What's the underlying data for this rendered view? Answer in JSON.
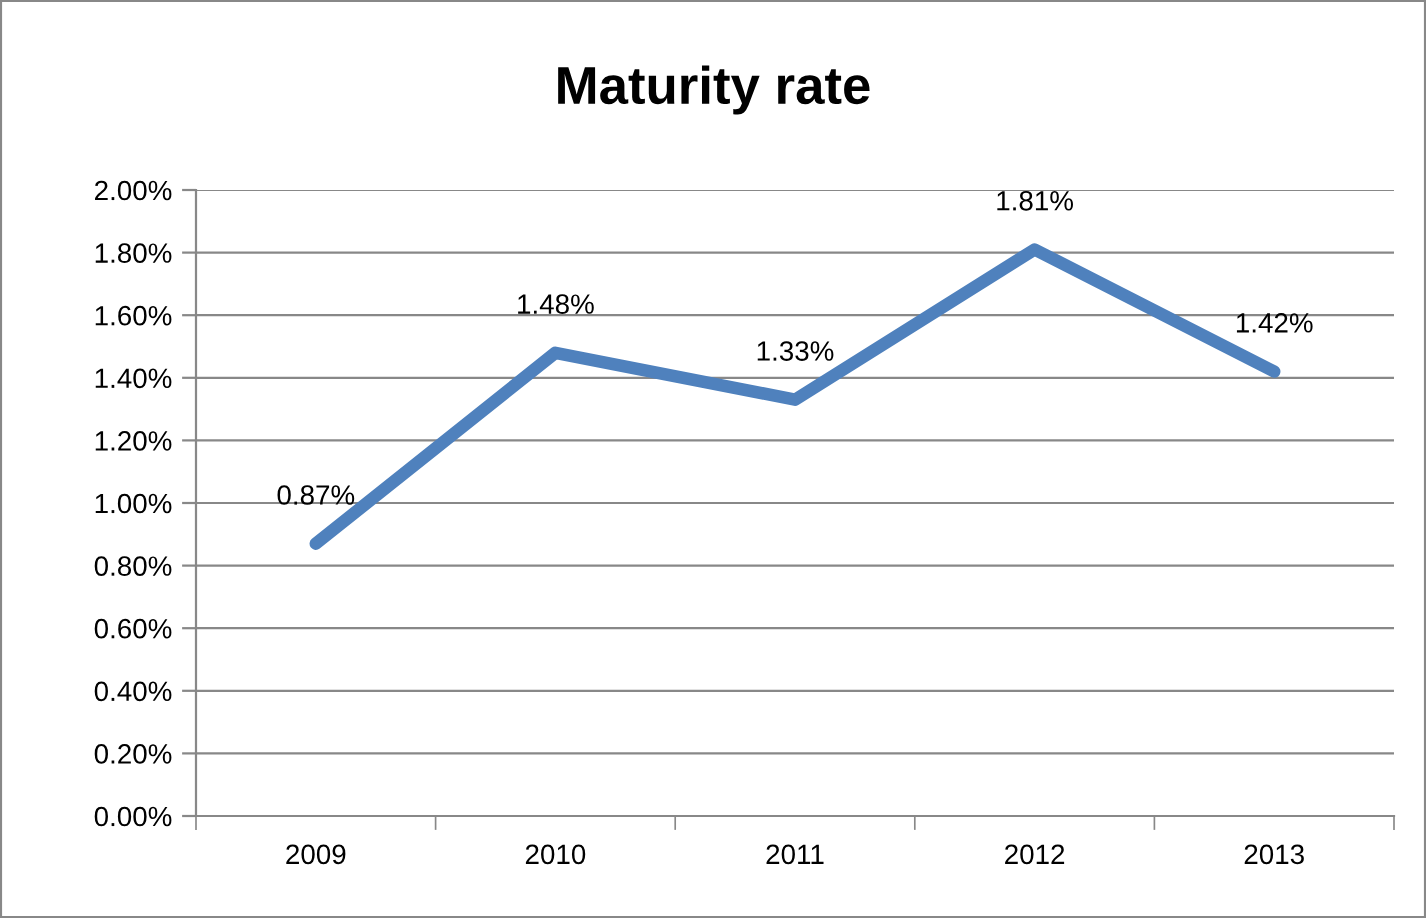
{
  "chart_data": {
    "type": "line",
    "title": "Maturity rate",
    "categories": [
      "2009",
      "2010",
      "2011",
      "2012",
      "2013"
    ],
    "series": [
      {
        "color": "#4f81bd",
        "values": [
          0.87,
          1.48,
          1.33,
          1.81,
          1.42
        ],
        "value_labels": [
          "0.87%",
          "1.48%",
          "1.33%",
          "1.81%",
          "1.42%"
        ]
      }
    ],
    "ylim": [
      0,
      2
    ],
    "yticks": [
      {
        "value": 0,
        "label": "0.00%"
      },
      {
        "value": 0.2,
        "label": "0.20%"
      },
      {
        "value": 0.4,
        "label": "0.40%"
      },
      {
        "value": 0.6,
        "label": "0.60%"
      },
      {
        "value": 0.8,
        "label": "0.80%"
      },
      {
        "value": 1.0,
        "label": "1.00%"
      },
      {
        "value": 1.2,
        "label": "1.20%"
      },
      {
        "value": 1.4,
        "label": "1.40%"
      },
      {
        "value": 1.6,
        "label": "1.60%"
      },
      {
        "value": 1.8,
        "label": "1.80%"
      },
      {
        "value": 2.0,
        "label": "2.00%"
      }
    ],
    "grid": "y",
    "legend": false,
    "marker": "none",
    "line_style": "solid"
  }
}
